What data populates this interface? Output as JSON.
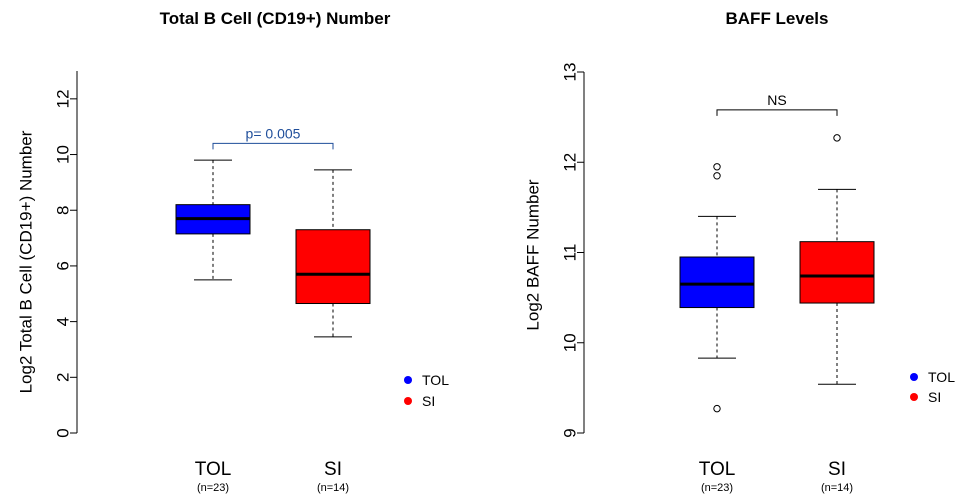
{
  "chart_data": [
    {
      "type": "boxplot",
      "title": "Total B Cell (CD19+) Number",
      "ylabel": "Log2 Total B Cell (CD19+) Number",
      "ylim": [
        0,
        13
      ],
      "yticks": [
        0,
        2,
        4,
        6,
        8,
        10,
        12
      ],
      "categories": [
        "TOL",
        "SI"
      ],
      "sample_sizes": [
        "(n=23)",
        "(n=14)"
      ],
      "boxes": [
        {
          "name": "TOL",
          "color": "#0000ff",
          "whisker_low": 5.5,
          "q1": 7.15,
          "median": 7.7,
          "q3": 8.2,
          "whisker_high": 9.8,
          "outliers": []
        },
        {
          "name": "SI",
          "color": "#ff0000",
          "whisker_low": 3.45,
          "q1": 4.65,
          "median": 5.7,
          "q3": 7.3,
          "whisker_high": 9.45,
          "outliers": []
        }
      ],
      "annotation": {
        "text": "p= 0.005",
        "color": "#1f4e9a",
        "y": 10.4
      },
      "legend": {
        "position": "bottom-right",
        "entries": [
          {
            "label": "TOL",
            "color": "#0000ff"
          },
          {
            "label": "SI",
            "color": "#ff0000"
          }
        ]
      }
    },
    {
      "type": "boxplot",
      "title": "BAFF Levels",
      "ylabel": "Log2 BAFF Number",
      "ylim": [
        9,
        13
      ],
      "yticks": [
        9,
        10,
        11,
        12,
        13
      ],
      "categories": [
        "TOL",
        "SI"
      ],
      "sample_sizes": [
        "(n=23)",
        "(n=14)"
      ],
      "boxes": [
        {
          "name": "TOL",
          "color": "#0000ff",
          "whisker_low": 9.83,
          "q1": 10.39,
          "median": 10.65,
          "q3": 10.95,
          "whisker_high": 11.4,
          "outliers": [
            9.27,
            11.85,
            11.95
          ]
        },
        {
          "name": "SI",
          "color": "#ff0000",
          "whisker_low": 9.54,
          "q1": 10.44,
          "median": 10.74,
          "q3": 11.12,
          "whisker_high": 11.7,
          "outliers": [
            12.27
          ]
        }
      ],
      "annotation": {
        "text": "NS",
        "color": "#000000",
        "y": 12.58
      },
      "legend": {
        "position": "bottom-right",
        "entries": [
          {
            "label": "TOL",
            "color": "#0000ff"
          },
          {
            "label": "SI",
            "color": "#ff0000"
          }
        ]
      }
    }
  ]
}
